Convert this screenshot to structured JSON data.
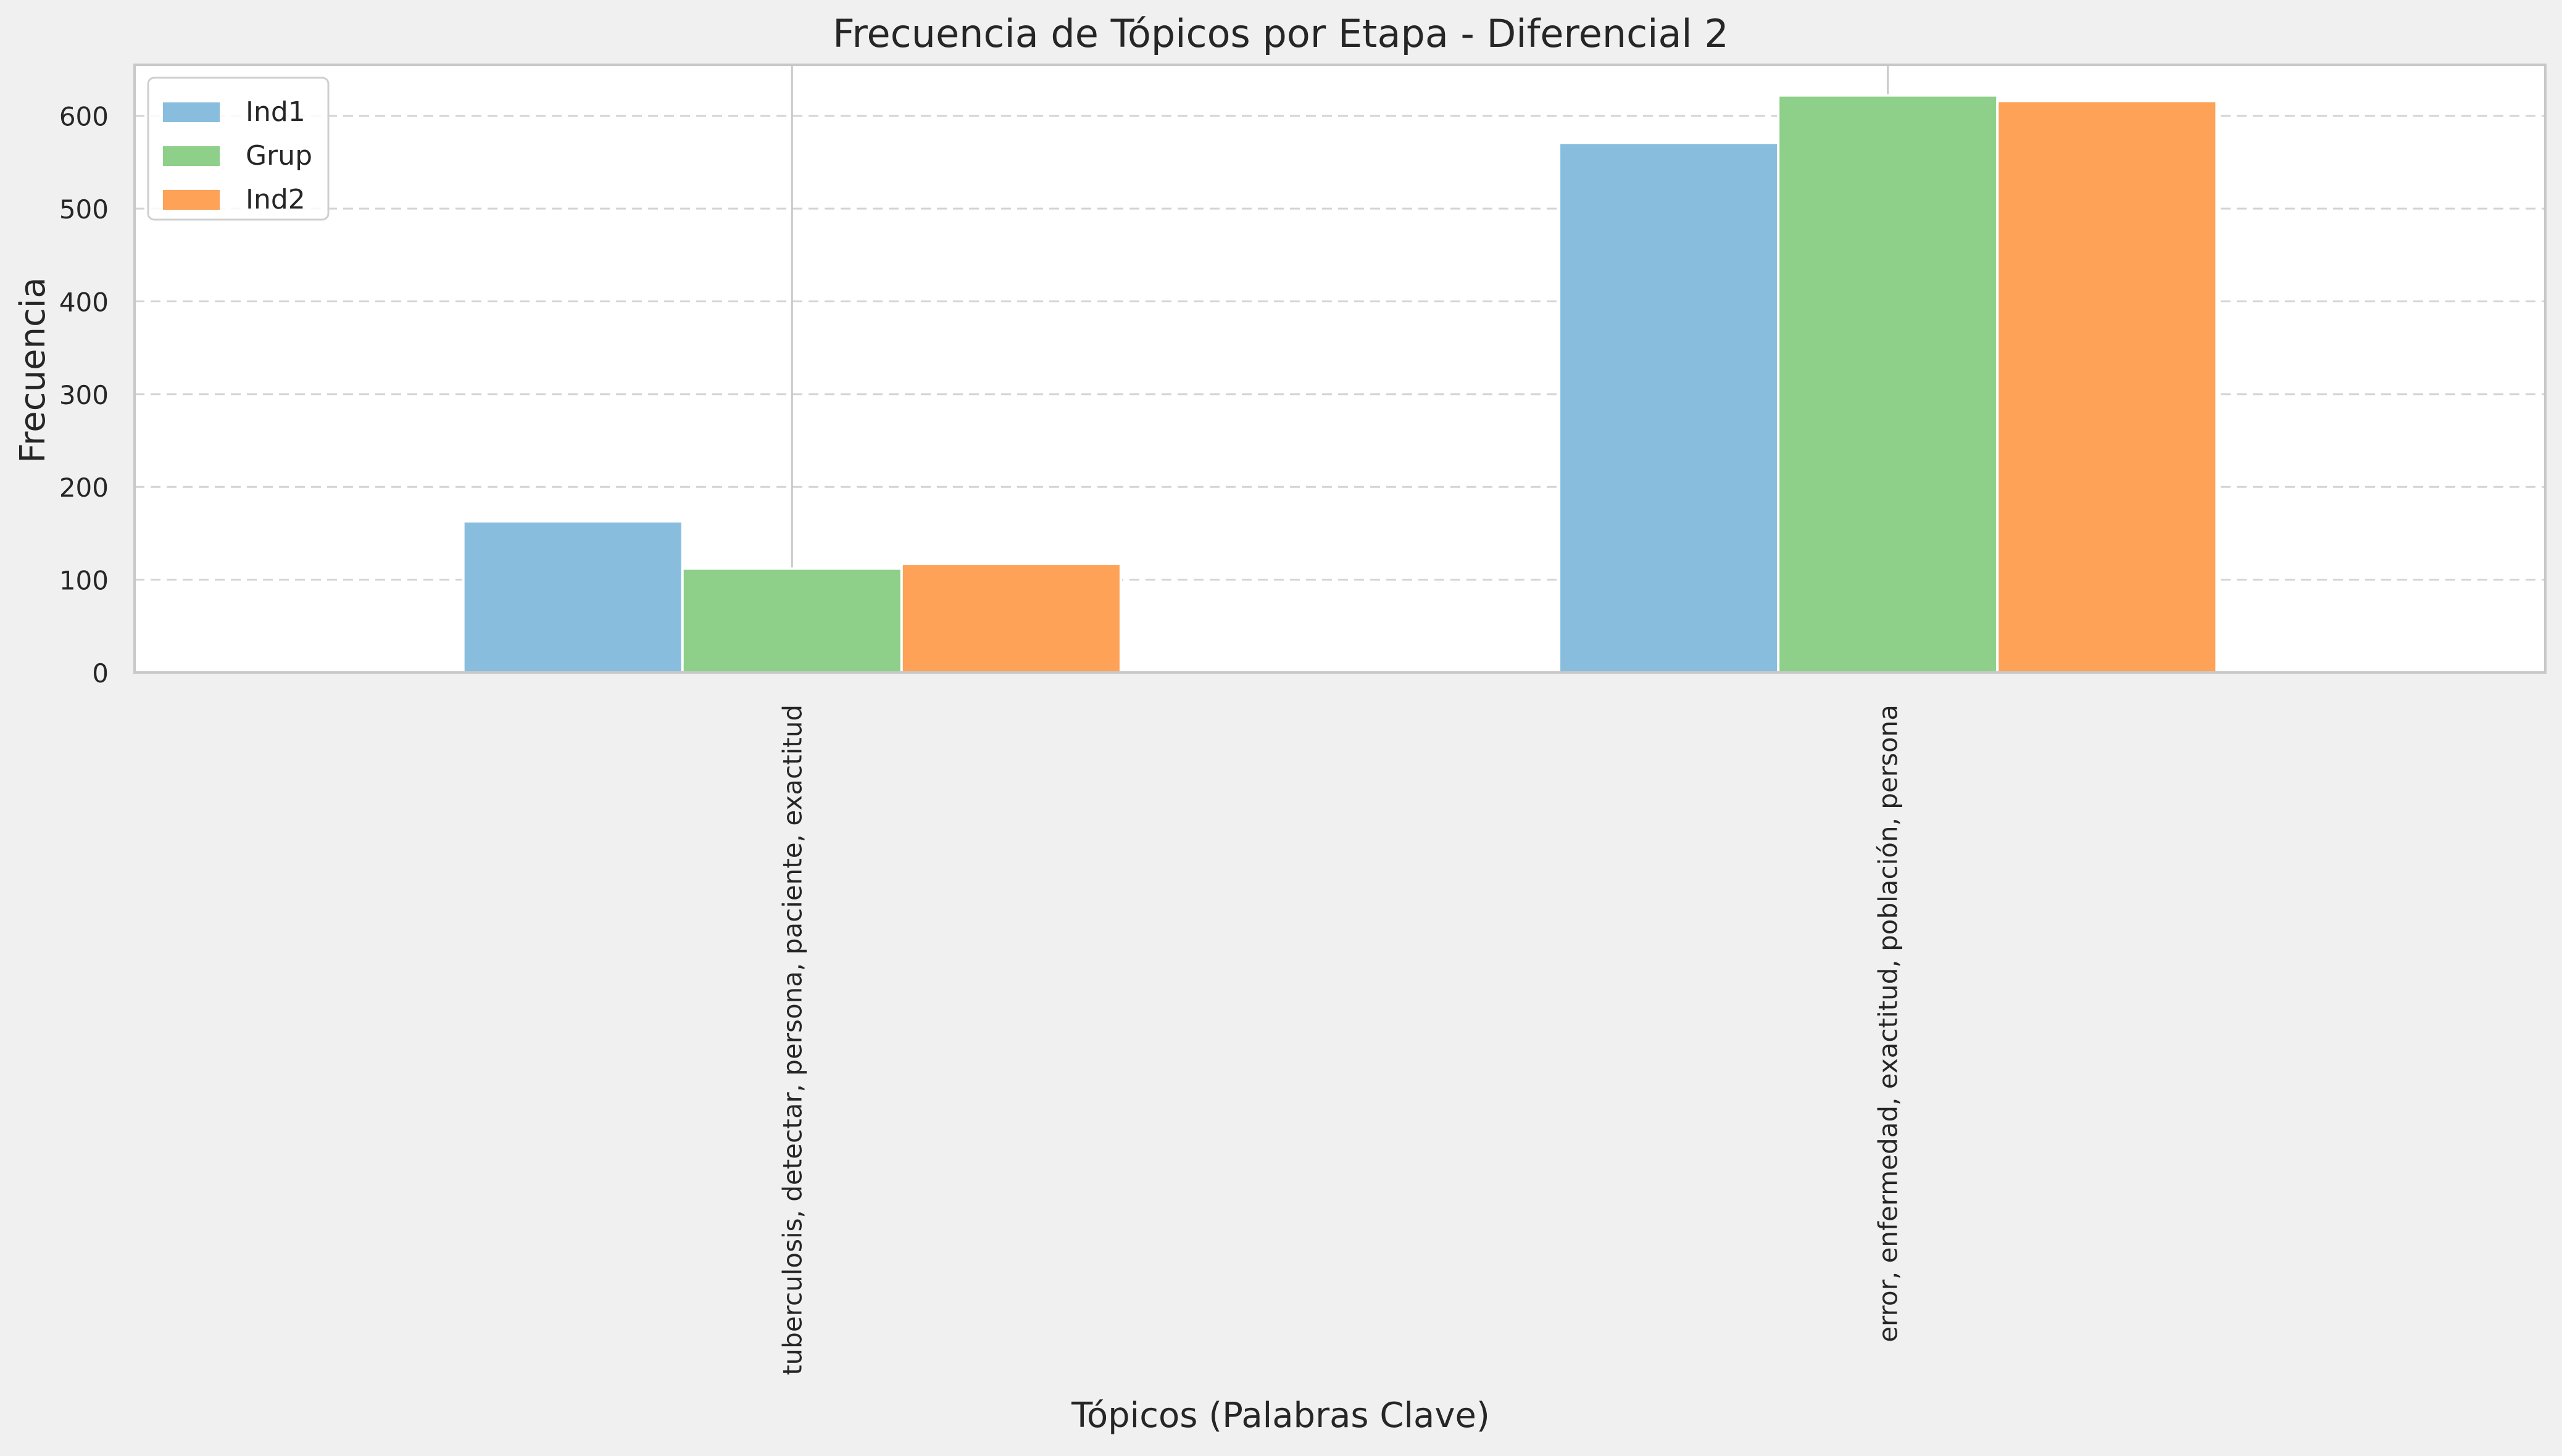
{
  "chart_data": {
    "type": "bar",
    "title": "Frecuencia de Tópicos por Etapa - Diferencial 2",
    "xlabel": "Tópicos (Palabras Clave)",
    "ylabel": "Frecuencia",
    "categories": [
      "tuberculosis, detectar, persona, paciente, exactitud",
      "error, enfermedad, exactitud, población, persona"
    ],
    "series": [
      {
        "name": "Ind1",
        "color": "#88bdde",
        "values": [
          163,
          571
        ]
      },
      {
        "name": "Grup",
        "color": "#8ed08a",
        "values": [
          112,
          622
        ]
      },
      {
        "name": "Ind2",
        "color": "#fda257",
        "values": [
          117,
          616
        ]
      }
    ],
    "ylim": [
      0,
      655
    ],
    "yticks": [
      0,
      100,
      200,
      300,
      400,
      500,
      600
    ],
    "grid": "y-dashed",
    "legend": "top-left"
  }
}
